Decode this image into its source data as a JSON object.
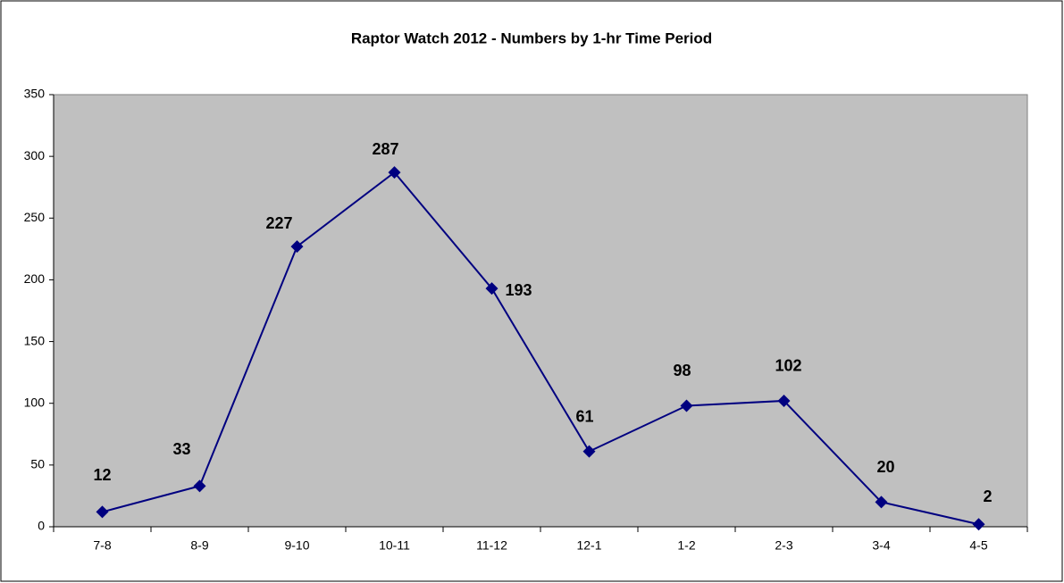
{
  "chart_data": {
    "type": "line",
    "title": "Raptor Watch 2012 - Numbers by 1-hr Time Period",
    "categories": [
      "7-8",
      "8-9",
      "9-10",
      "10-11",
      "11-12",
      "12-1",
      "1-2",
      "2-3",
      "3-4",
      "4-5"
    ],
    "values": [
      12,
      33,
      227,
      287,
      193,
      61,
      98,
      102,
      20,
      2
    ],
    "color": "#000080",
    "ylim": [
      0,
      350
    ],
    "yticks": [
      0,
      50,
      100,
      150,
      200,
      250,
      300,
      350
    ],
    "plot_background": "#c0c0c0"
  }
}
